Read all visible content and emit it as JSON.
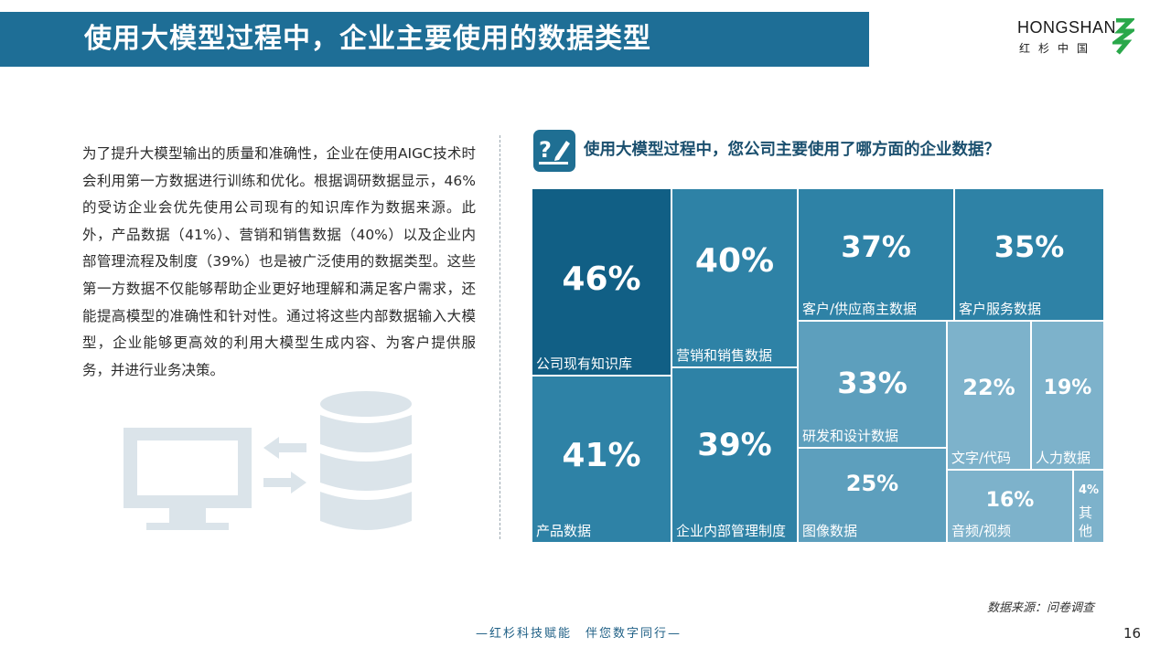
{
  "header": {
    "title": "使用大模型过程中，企业主要使用的数据类型"
  },
  "logo": {
    "name_en": "HONGSHAN",
    "name_cn": "红杉中国"
  },
  "body_text": "为了提升大模型输出的质量和准确性，企业在使用AIGC技术时会利用第一方数据进行训练和优化。根据调研数据显示，46%的受访企业会优先使用公司现有的知识库作为数据来源。此外，产品数据（41%）、营销和销售数据（40%）以及企业内部管理流程及制度（39%）也是被广泛使用的数据类型。这些第一方数据不仅能够帮助企业更好地理解和满足客户需求，还能提高模型的准确性和针对性。通过将这些内部数据输入大模型，企业能够更高效的利用大模型生成内容、为客户提供服务，并进行业务决策。",
  "question": {
    "text": "使用大模型过程中，您公司主要使用了哪方面的企业数据？"
  },
  "colors": {
    "title_bar": "#1e6e96",
    "dark": "#115f85",
    "mid": "#2e82a6",
    "light": "#5d9fbd",
    "lighter": "#7db2cb",
    "logo_green": "#2aa84a"
  },
  "chart_data": {
    "type": "treemap",
    "title": "",
    "unit": "%",
    "items": [
      {
        "label": "公司现有知识库",
        "value": 46,
        "value_label": "46%"
      },
      {
        "label": "产品数据",
        "value": 41,
        "value_label": "41%"
      },
      {
        "label": "营销和销售数据",
        "value": 40,
        "value_label": "40%"
      },
      {
        "label": "企业内部管理制度",
        "value": 39,
        "value_label": "39%"
      },
      {
        "label": "客户/供应商主数据",
        "value": 37,
        "value_label": "37%"
      },
      {
        "label": "客户服务数据",
        "value": 35,
        "value_label": "35%"
      },
      {
        "label": "研发和设计数据",
        "value": 33,
        "value_label": "33%"
      },
      {
        "label": "图像数据",
        "value": 25,
        "value_label": "25%"
      },
      {
        "label": "文字/代码",
        "value": 22,
        "value_label": "22%"
      },
      {
        "label": "人力数据",
        "value": 19,
        "value_label": "19%"
      },
      {
        "label": "音频/视频",
        "value": 16,
        "value_label": "16%"
      },
      {
        "label": "其他",
        "value": 4,
        "value_label": "4%"
      }
    ]
  },
  "footer": {
    "source": "数据来源：问卷调查",
    "slogan": "—红杉科技赋能　伴您数字同行—",
    "page": "16"
  }
}
